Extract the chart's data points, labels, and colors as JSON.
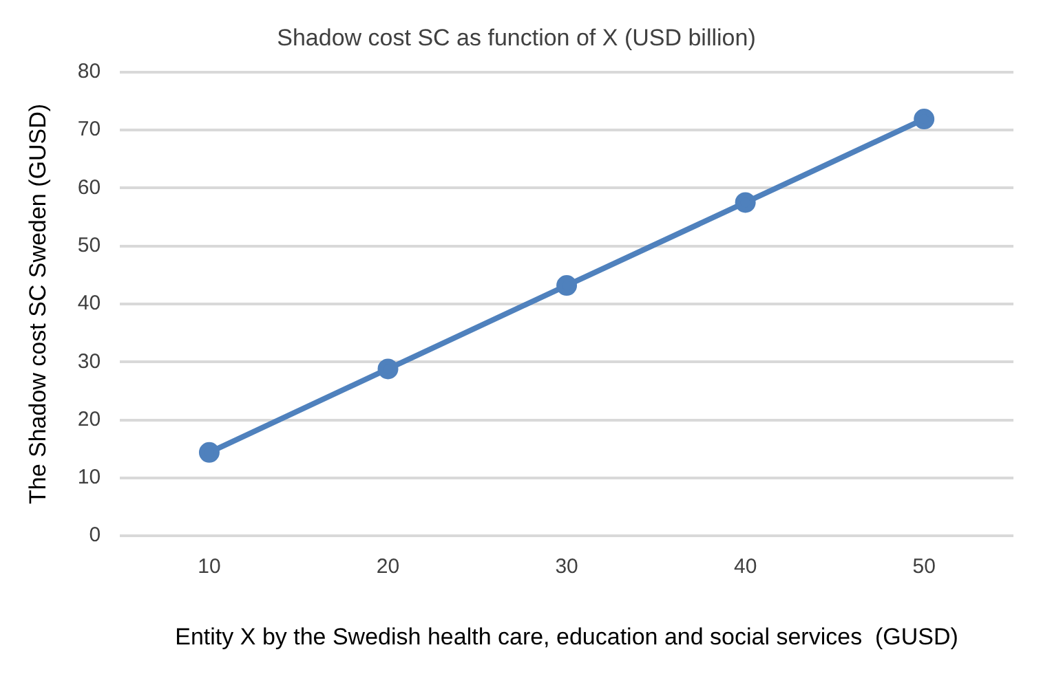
{
  "chart_data": {
    "type": "line",
    "title": "Shadow cost SC as function of X (USD billion)",
    "xlabel": "Entity X by the Swedish health care, education and social services  (GUSD)",
    "ylabel": "The Shadow cost SC Sweden (GUSD)",
    "categories": [
      "10",
      "20",
      "30",
      "40",
      "50"
    ],
    "series": [
      {
        "color": "#4f81bd",
        "values": [
          14.4,
          28.8,
          43.2,
          57.5,
          71.9
        ]
      }
    ],
    "ylim": [
      0,
      80
    ],
    "yticks": [
      0,
      10,
      20,
      30,
      40,
      50,
      60,
      70,
      80
    ],
    "grid": "y",
    "legend": false,
    "marker": "circle",
    "line_style": "solid"
  }
}
